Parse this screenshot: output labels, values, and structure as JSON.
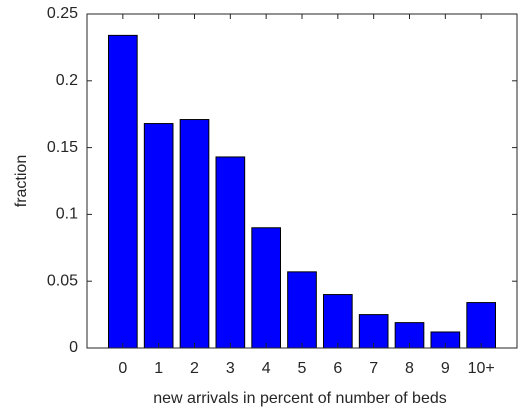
{
  "chart_data": {
    "type": "bar",
    "xlabel": "new arrivals in percent of number of beds",
    "ylabel": "fraction",
    "categories": [
      "0",
      "1",
      "2",
      "3",
      "4",
      "5",
      "6",
      "7",
      "8",
      "9",
      "10+"
    ],
    "values": [
      0.234,
      0.168,
      0.171,
      0.143,
      0.09,
      0.057,
      0.04,
      0.025,
      0.019,
      0.012,
      0.034
    ],
    "color": "#0000ff",
    "ylim": [
      0,
      0.25
    ],
    "yticks": [
      0,
      0.05,
      0.1,
      0.15,
      0.2,
      0.25
    ],
    "grid": false
  }
}
